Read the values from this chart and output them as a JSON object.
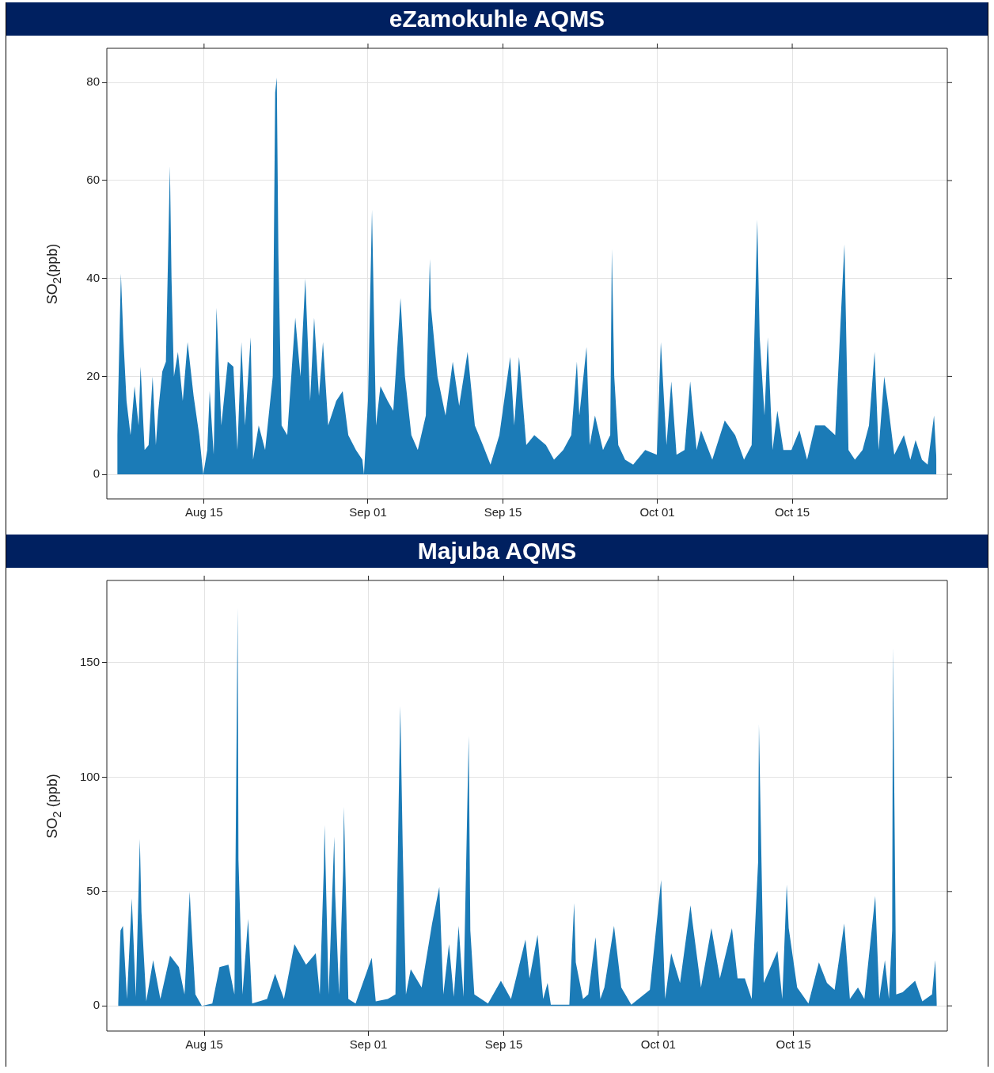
{
  "chart_data": [
    {
      "type": "area",
      "title": "eZamokuhle AQMS",
      "ylabel": "SO$_{2}$(ppb)",
      "color": "#1b7bb7",
      "marker": "none",
      "grid": true,
      "xlim": [
        "--08-04T22:00",
        "--10-31T02:00"
      ],
      "xticks": [
        {
          "value": "--08-15",
          "label": "Aug 15"
        },
        {
          "value": "--09-01",
          "label": "Sep 01"
        },
        {
          "value": "--09-15",
          "label": "Sep 15"
        },
        {
          "value": "--10-01",
          "label": "Oct 01"
        },
        {
          "value": "--10-15",
          "label": "Oct 15"
        }
      ],
      "ylim": [
        -5,
        87
      ],
      "yticks": [
        0,
        20,
        40,
        60,
        80
      ],
      "x": [
        "--08-06T00:00",
        "--08-06T09:00",
        "--08-06T15:00",
        "--08-06T23:00",
        "--08-07T09:00",
        "--08-07T19:00",
        "--08-08T05:00",
        "--08-08T10:00",
        "--08-08T20:00",
        "--08-09T06:00",
        "--08-09T16:00",
        "--08-10T00:00",
        "--08-10T06:00",
        "--08-10T16:00",
        "--08-11T01:00",
        "--08-11T07:00",
        "--08-11T11:00",
        "--08-11T15:00",
        "--08-11T21:00",
        "--08-12T07:00",
        "--08-12T19:00",
        "--08-13T07:00",
        "--08-13T22:00",
        "--08-14T12:00",
        "--08-14T22:00",
        "--08-15T08:00",
        "--08-15T14:00",
        "--08-16T00:00",
        "--08-16T07:00",
        "--08-16T19:00",
        "--08-17T11:00",
        "--08-18T01:00",
        "--08-18T11:00",
        "--08-18T21:00",
        "--08-19T06:00",
        "--08-19T20:00",
        "--08-20T02:00",
        "--08-20T16:00",
        "--08-21T08:00",
        "--08-22T03:00",
        "--08-22T09:00",
        "--08-22T13:00",
        "--08-22T17:00",
        "--08-23T01:00",
        "--08-23T15:00",
        "--08-24T11:00",
        "--08-25T00:00",
        "--08-25T12:00",
        "--08-26T00:00",
        "--08-26T10:00",
        "--08-26T22:00",
        "--08-27T08:00",
        "--08-27T21:00",
        "--08-28T17:00",
        "--08-29T09:00",
        "--08-29T23:00",
        "--08-30T18:00",
        "--08-31T10:00",
        "--08-31T14:00",
        "--09-01T00:00",
        "--09-01T10:00",
        "--09-01T20:00",
        "--09-02T07:00",
        "--09-03T01:00",
        "--09-03T15:00",
        "--09-04T09:00",
        "--09-04T20:00",
        "--09-05T12:00",
        "--09-06T04:00",
        "--09-07T00:00",
        "--09-07T10:00",
        "--09-07T13:00",
        "--09-08T05:00",
        "--09-09T01:00",
        "--09-09T19:00",
        "--09-10T11:00",
        "--09-11T08:00",
        "--09-12T02:00",
        "--09-12T22:00",
        "--09-13T17:00",
        "--09-14T15:00",
        "--09-15T18:00",
        "--09-16T04:00",
        "--09-16T16:00",
        "--09-17T10:00",
        "--09-18T06:00",
        "--09-19T11:00",
        "--09-20T07:00",
        "--09-21T06:00",
        "--09-22T02:00",
        "--09-22T16:00",
        "--09-22T22:00",
        "--09-23T16:00",
        "--09-24T00:00",
        "--09-24T13:00",
        "--09-25T09:00",
        "--09-26T03:00",
        "--09-26T07:00",
        "--09-26T13:00",
        "--09-26T23:00",
        "--09-27T16:00",
        "--09-28T12:00",
        "--09-29T18:00",
        "--09-30T23:00",
        "--10-01T09:00",
        "--10-01T23:00",
        "--10-02T11:00",
        "--10-03T00:00",
        "--10-03T20:00",
        "--10-04T10:00",
        "--10-05T02:00",
        "--10-05T13:00",
        "--10-06T17:00",
        "--10-08T00:00",
        "--10-09T02:00",
        "--10-10T00:00",
        "--10-10T19:00",
        "--10-11T09:00",
        "--10-11T15:00",
        "--10-12T03:00",
        "--10-12T11:00",
        "--10-12T23:00",
        "--10-13T11:00",
        "--10-14T02:00",
        "--10-14T22:00",
        "--10-15T18:00",
        "--10-16T13:00",
        "--10-17T09:00",
        "--10-18T09:00",
        "--10-19T11:00",
        "--10-20T02:00",
        "--10-20T10:00",
        "--10-20T20:00",
        "--10-21T12:00",
        "--10-22T07:00",
        "--10-22T23:00",
        "--10-23T13:00",
        "--10-23T23:00",
        "--10-24T13:00",
        "--10-24T23:00",
        "--10-25T14:00",
        "--10-26T14:00",
        "--10-27T06:00",
        "--10-27T19:00",
        "--10-28T11:00",
        "--10-29T01:00",
        "--10-29T17:00",
        "--10-29T23:00"
      ],
      "values": [
        8,
        41,
        28,
        15,
        8,
        18,
        10,
        22,
        5,
        6,
        20,
        6,
        13,
        21,
        23,
        47,
        63,
        40,
        20,
        25,
        15,
        27,
        16,
        8,
        0,
        5,
        17,
        4,
        34,
        10,
        23,
        22,
        5,
        27,
        10,
        28,
        3,
        10,
        5,
        20,
        78,
        81,
        45,
        10,
        8,
        32,
        20,
        40,
        15,
        32,
        16,
        27,
        10,
        15,
        17,
        8,
        5,
        3,
        0,
        15,
        54,
        10,
        18,
        15,
        13,
        36,
        20,
        8,
        5,
        12,
        44,
        34,
        20,
        12,
        23,
        14,
        25,
        10,
        6,
        2,
        8,
        24,
        10,
        24,
        6,
        8,
        6,
        3,
        5,
        8,
        23,
        12,
        26,
        6,
        12,
        5,
        8,
        46,
        20,
        6,
        3,
        2,
        5,
        4,
        27,
        6,
        19,
        4,
        5,
        19,
        5,
        9,
        3,
        11,
        8,
        3,
        6,
        52,
        28,
        12,
        28,
        5,
        13,
        5,
        5,
        9,
        3,
        10,
        10,
        8,
        34,
        47,
        5,
        3,
        5,
        10,
        25,
        5,
        20,
        14,
        4,
        8,
        3,
        7,
        3,
        2,
        12,
        3
      ]
    },
    {
      "type": "area",
      "title": "Majuba AQMS",
      "ylabel": "SO$_{2}$ (ppb)",
      "color": "#1b7bb7",
      "marker": "none",
      "grid": true,
      "xlim": [
        "--08-04T22:00",
        "--10-30T22:00"
      ],
      "xticks": [
        {
          "value": "--08-15",
          "label": "Aug 15"
        },
        {
          "value": "--09-01",
          "label": "Sep 01"
        },
        {
          "value": "--09-15",
          "label": "Sep 15"
        },
        {
          "value": "--10-01",
          "label": "Oct 01"
        },
        {
          "value": "--10-15",
          "label": "Oct 15"
        }
      ],
      "ylim": [
        -11,
        186
      ],
      "yticks": [
        0,
        50,
        100,
        150
      ],
      "x": [
        "--08-06T02:00",
        "--08-06T08:00",
        "--08-06T14:00",
        "--08-07T00:00",
        "--08-07T12:00",
        "--08-07T22:00",
        "--08-08T08:00",
        "--08-08T12:00",
        "--08-09T00:00",
        "--08-09T17:00",
        "--08-10T11:00",
        "--08-11T11:00",
        "--08-12T09:00",
        "--08-12T23:00",
        "--08-13T12:00",
        "--08-13T14:00",
        "--08-14T02:00",
        "--08-14T18:00",
        "--08-15T20:00",
        "--08-16T14:00",
        "--08-17T12:00",
        "--08-18T03:00",
        "--08-18T11:00",
        "--08-18T13:00",
        "--08-18T23:00",
        "--08-19T13:00",
        "--08-19T23:00",
        "--08-21T12:00",
        "--08-22T08:00",
        "--08-23T06:00",
        "--08-24T08:00",
        "--08-25T13:00",
        "--08-26T13:00",
        "--08-26T23:00",
        "--08-27T09:00",
        "--08-27T11:00",
        "--08-27T21:00",
        "--08-28T11:00",
        "--08-28T13:00",
        "--08-28T23:00",
        "--08-29T09:00",
        "--08-29T11:00",
        "--08-29T22:00",
        "--08-30T16:00",
        "--09-01T08:00",
        "--09-01T18:00",
        "--09-03T00:00",
        "--09-03T19:00",
        "--09-04T07:00",
        "--09-04T13:00",
        "--09-04T21:00",
        "--09-05T09:00",
        "--09-06T12:00",
        "--09-07T14:00",
        "--09-08T08:00",
        "--09-08T18:00",
        "--09-09T08:00",
        "--09-09T20:00",
        "--09-10T08:00",
        "--09-10T20:00",
        "--09-11T09:00",
        "--09-11T13:00",
        "--09-11T23:00",
        "--09-13T09:00",
        "--09-14T17:00",
        "--09-15T18:00",
        "--09-17T06:00",
        "--09-17T16:00",
        "--09-18T12:00",
        "--09-19T02:00",
        "--09-19T13:00",
        "--09-19T21:00",
        "--09-21T19:00",
        "--09-22T07:00",
        "--09-22T11:00",
        "--09-23T05:00",
        "--09-23T18:00",
        "--09-24T12:00",
        "--09-25T00:00",
        "--09-25T10:00",
        "--09-26T10:00",
        "--09-27T04:00",
        "--09-28T05:00",
        "--09-30T03:00",
        "--10-01T07:00",
        "--10-01T17:00",
        "--10-02T08:00",
        "--10-03T06:00",
        "--10-04T08:00",
        "--10-04T12:00",
        "--10-05T10:00",
        "--10-06T12:00",
        "--10-07T09:00",
        "--10-08T15:00",
        "--10-09T05:00",
        "--10-09T23:00",
        "--10-10T16:00",
        "--10-11T08:00",
        "--10-11T10:00",
        "--10-11T22:00",
        "--10-13T08:00",
        "--10-13T20:00",
        "--10-14T07:00",
        "--10-14T12:00",
        "--10-15T09:00",
        "--10-16T13:00",
        "--10-17T15:00",
        "--10-18T11:00",
        "--10-19T06:00",
        "--10-20T06:00",
        "--10-20T20:00",
        "--10-21T16:00",
        "--10-22T08:00",
        "--10-23T11:00",
        "--10-23T21:00",
        "--10-24T11:00",
        "--10-24T21:00",
        "--10-25T05:00",
        "--10-25T07:00",
        "--10-25T15:00",
        "--10-26T07:00",
        "--10-27T14:00",
        "--10-28T08:00",
        "--10-29T08:00",
        "--10-29T16:00",
        "--10-29T20:00"
      ],
      "values": [
        1,
        33,
        35,
        3,
        47,
        4,
        73,
        41,
        2,
        20,
        3,
        22,
        17,
        5,
        50,
        42,
        5,
        0,
        1,
        17,
        18,
        5,
        174,
        64,
        5,
        38,
        1,
        3,
        14,
        3,
        27,
        18,
        23,
        5,
        60,
        79,
        5,
        74,
        50,
        5,
        59,
        87,
        3,
        1,
        21,
        2,
        3,
        5,
        131,
        70,
        5,
        16,
        8,
        36,
        52,
        5,
        27,
        4,
        35,
        4,
        118,
        33,
        5,
        1,
        11,
        3,
        29,
        12,
        31,
        3,
        10,
        0.5,
        0.5,
        45,
        19,
        3,
        5,
        30,
        3,
        8,
        35,
        8,
        0.5,
        7,
        55,
        3,
        23,
        10,
        44,
        38,
        8,
        34,
        12,
        34,
        12,
        12,
        3,
        63,
        123,
        10,
        24,
        3,
        53,
        34,
        8,
        1,
        19,
        10,
        7,
        36,
        3,
        8,
        3,
        48,
        3,
        20,
        3,
        33,
        157,
        5,
        6,
        11,
        2,
        5,
        20,
        1
      ]
    }
  ]
}
